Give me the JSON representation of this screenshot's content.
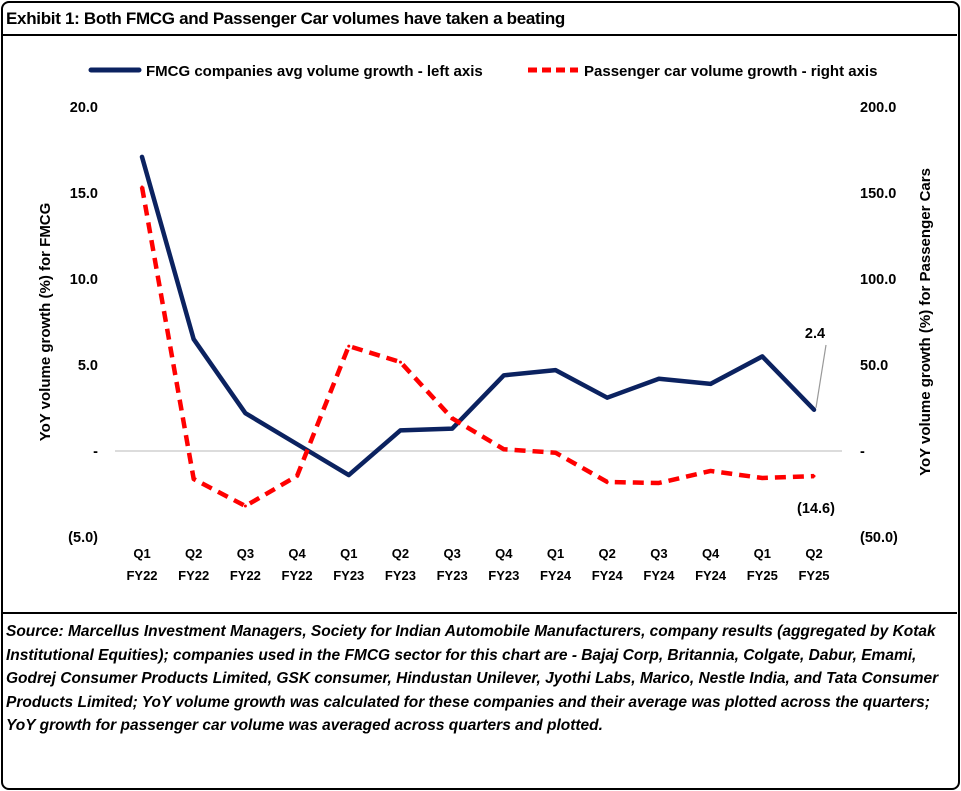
{
  "title": "Exhibit 1: Both FMCG and Passenger Car volumes have taken a beating",
  "source": "Source: Marcellus Investment Managers, Society for Indian Automobile Manufacturers, company results (aggregated by Kotak Institutional Equities); companies used in the FMCG sector for this chart are - Bajaj Corp, Britannia, Colgate, Dabur, Emami, Godrej Consumer Products Limited, GSK consumer, Hindustan Unilever, Jyothi Labs, Marico, Nestle India, and Tata Consumer Products Limited; YoY volume growth was calculated for these companies and their average was plotted across the quarters; YoY growth for passenger car volume was averaged across quarters and plotted.",
  "chart_data": {
    "type": "line",
    "title": "Exhibit 1: Both FMCG and Passenger Car volumes have taken a beating",
    "categories": [
      [
        "Q1",
        "FY22"
      ],
      [
        "Q2",
        "FY22"
      ],
      [
        "Q3",
        "FY22"
      ],
      [
        "Q4",
        "FY22"
      ],
      [
        "Q1",
        "FY23"
      ],
      [
        "Q2",
        "FY23"
      ],
      [
        "Q3",
        "FY23"
      ],
      [
        "Q4",
        "FY23"
      ],
      [
        "Q1",
        "FY24"
      ],
      [
        "Q2",
        "FY24"
      ],
      [
        "Q3",
        "FY24"
      ],
      [
        "Q4",
        "FY24"
      ],
      [
        "Q1",
        "FY25"
      ],
      [
        "Q2",
        "FY25"
      ]
    ],
    "ylabel_left": "YoY volume growth (%) for FMCG",
    "ylabel_right": "YoY volume growth (%) for Passenger Cars",
    "ylim_left": [
      -5,
      20
    ],
    "ylim_right": [
      -50,
      200
    ],
    "yticks_left": [
      "(5.0)",
      "-",
      "5.0",
      "10.0",
      "15.0",
      "20.0"
    ],
    "yticks_right": [
      "(50.0)",
      "-",
      "50.0",
      "100.0",
      "150.0",
      "200.0"
    ],
    "legend_position": "top",
    "series": [
      {
        "name": "FMCG companies avg volume growth - left axis",
        "axis": "left",
        "color": "#0b2260",
        "style": "solid",
        "values": [
          17.1,
          6.5,
          2.2,
          0.4,
          -1.4,
          1.2,
          1.3,
          4.4,
          4.7,
          3.1,
          4.2,
          3.9,
          5.5,
          2.4
        ]
      },
      {
        "name": "Passenger car volume growth - right axis",
        "axis": "right",
        "color": "#ff0000",
        "style": "dashed",
        "values": [
          153.5,
          -16.3,
          -32.0,
          -14.5,
          61.0,
          51.7,
          19.0,
          1.0,
          -1.0,
          -18.0,
          -18.6,
          -11.6,
          -15.7,
          -14.6
        ]
      }
    ],
    "annotations": [
      "2.4",
      "(14.6)"
    ]
  }
}
